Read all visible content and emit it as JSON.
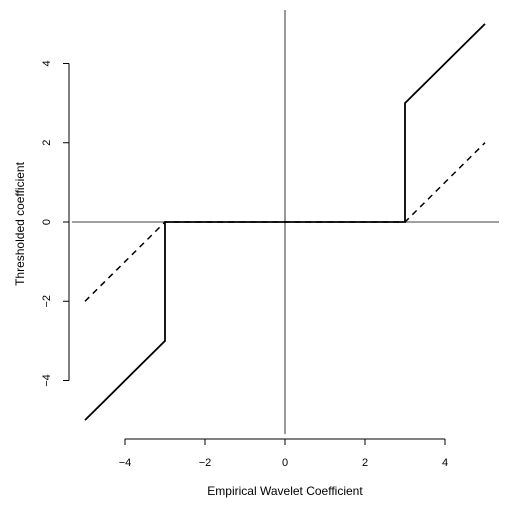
{
  "chart_data": {
    "type": "line",
    "title": "",
    "xlabel": "Empirical Wavelet Coefficient",
    "ylabel": "Thresholded coefficient",
    "xlim": [
      -5.05,
      5.05
    ],
    "ylim": [
      -5.35,
      5.35
    ],
    "xticks": [
      -4,
      -2,
      0,
      2,
      4
    ],
    "yticks": [
      -4,
      -2,
      0,
      2,
      4
    ],
    "xtick_labels": [
      "−4",
      "−2",
      "0",
      "2",
      "4"
    ],
    "ytick_labels": [
      "−4",
      "−2",
      "0",
      "2",
      "4"
    ],
    "grid": false,
    "reference_lines": {
      "horizontal": 0,
      "vertical": 0
    },
    "series": [
      {
        "style": "solid",
        "x": [
          -5,
          -3,
          -3,
          3,
          3,
          5
        ],
        "y": [
          -5,
          -3,
          0,
          0,
          3,
          5
        ]
      },
      {
        "style": "dashed",
        "x": [
          -5,
          -3,
          3,
          5
        ],
        "y": [
          -2,
          0,
          0,
          2
        ]
      }
    ]
  }
}
